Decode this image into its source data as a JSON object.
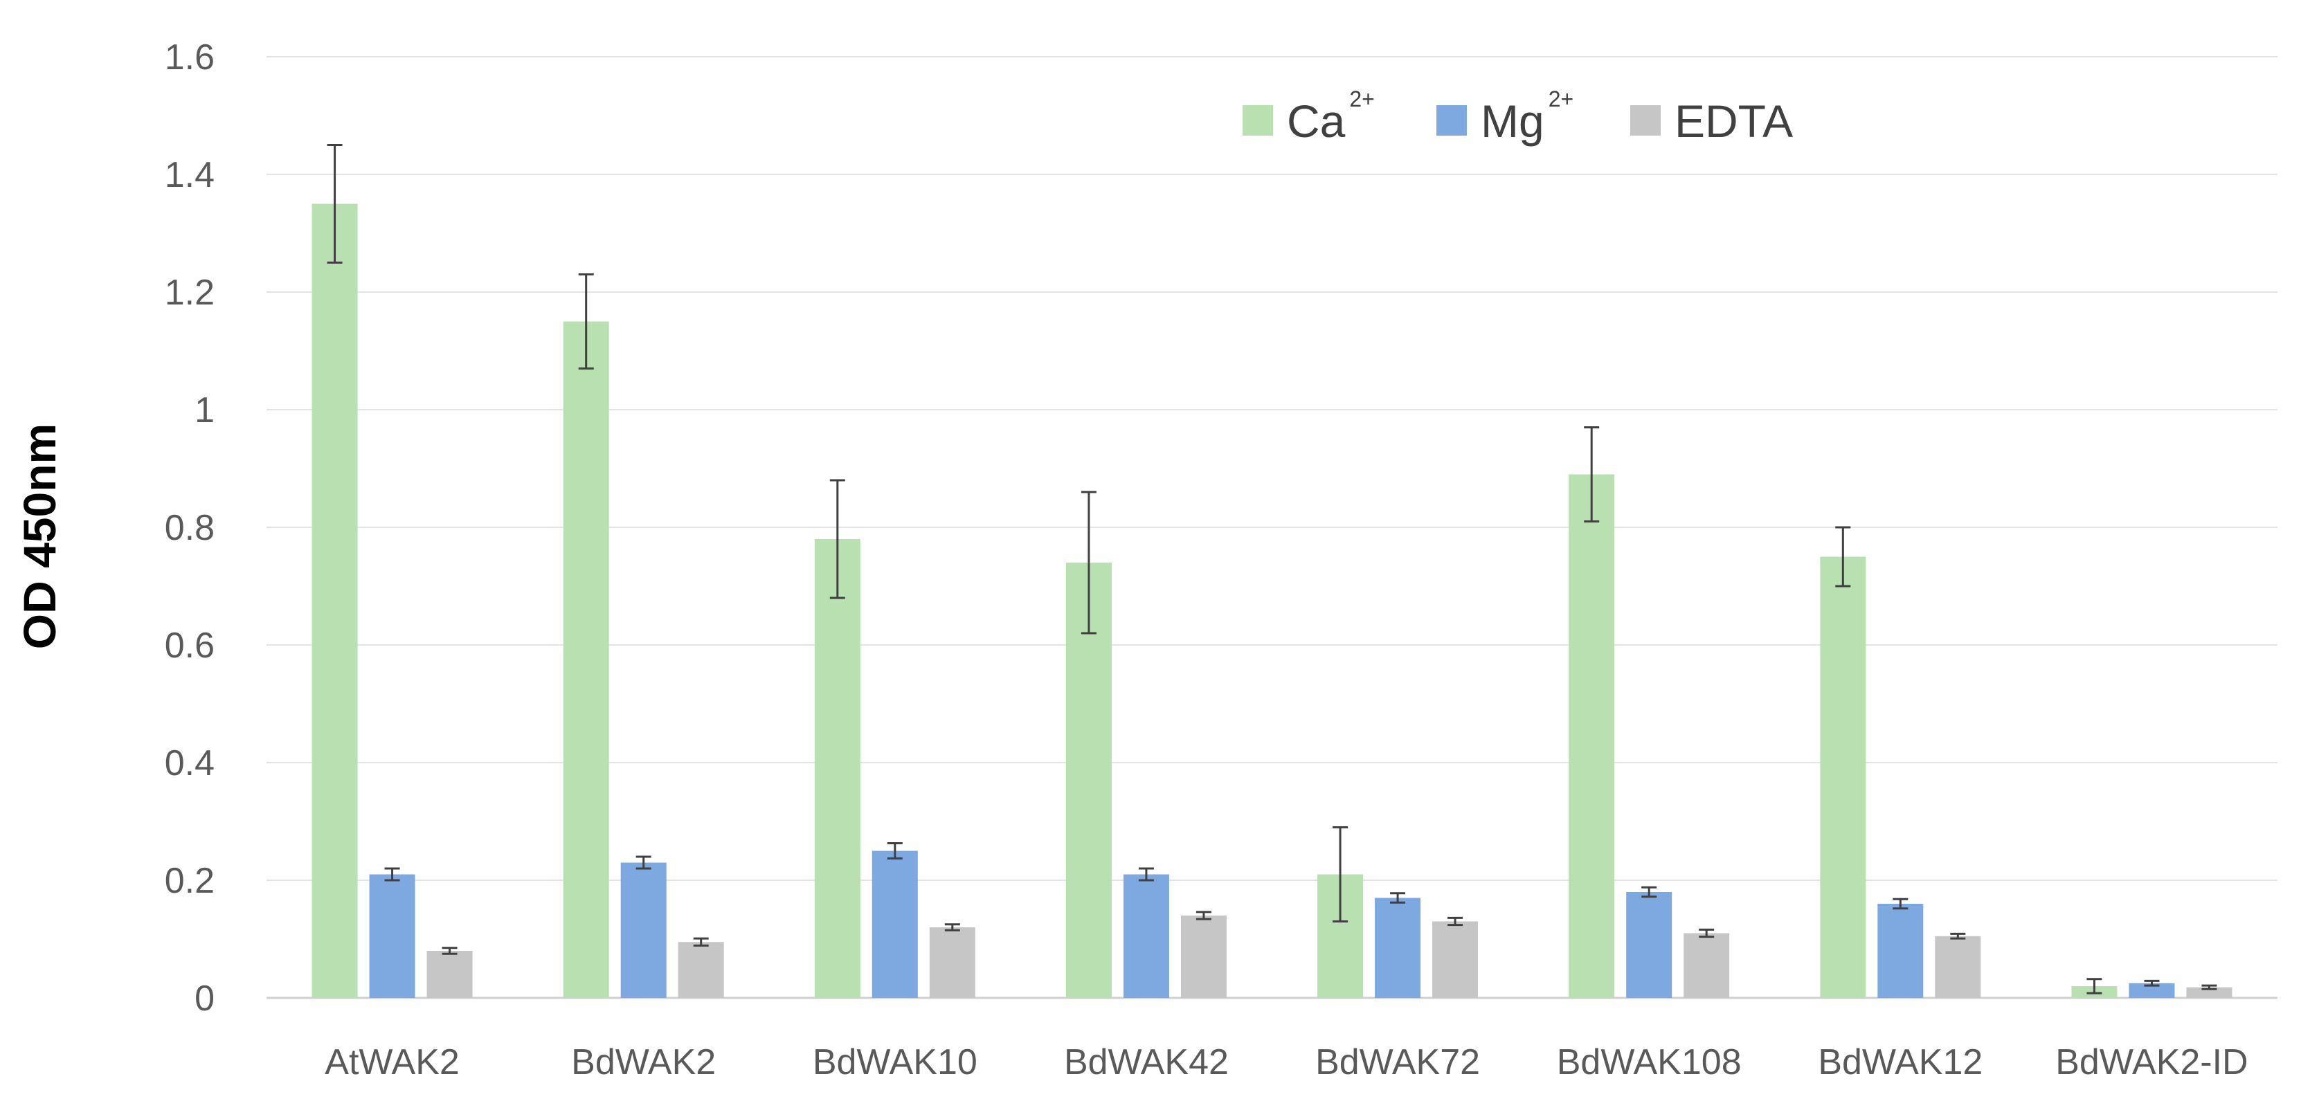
{
  "chart_data": {
    "type": "bar",
    "title": "",
    "xlabel": "",
    "ylabel": "OD 450nm",
    "ylim": [
      0,
      1.6
    ],
    "yticks": [
      0,
      0.2,
      0.4,
      0.6,
      0.8,
      1,
      1.2,
      1.4,
      1.6
    ],
    "ytick_labels": [
      "0",
      "0.2",
      "0.4",
      "0.6",
      "0.8",
      "1",
      "1.2",
      "1.4",
      "1.6"
    ],
    "grid": true,
    "legend_position": "top-right",
    "categories": [
      "AtWAK2",
      "BdWAK2",
      "BdWAK10",
      "BdWAK42",
      "BdWAK72",
      "BdWAK108",
      "BdWAK12",
      "BdWAK2-ID"
    ],
    "series": [
      {
        "name": "Ca2+",
        "legend_base": "Ca",
        "legend_sup": "2+",
        "color": "#b8e0b0",
        "values": [
          1.35,
          1.15,
          0.78,
          0.74,
          0.21,
          0.89,
          0.75,
          0.02
        ],
        "errors": [
          0.1,
          0.08,
          0.1,
          0.12,
          0.08,
          0.08,
          0.05,
          0.012
        ]
      },
      {
        "name": "Mg2+",
        "legend_base": "Mg",
        "legend_sup": "2+",
        "color": "#7ea8e0",
        "values": [
          0.21,
          0.23,
          0.25,
          0.21,
          0.17,
          0.18,
          0.16,
          0.025
        ],
        "errors": [
          0.01,
          0.01,
          0.013,
          0.01,
          0.008,
          0.008,
          0.008,
          0.004
        ]
      },
      {
        "name": "EDTA",
        "legend_base": "EDTA",
        "legend_sup": "",
        "color": "#c6c6c6",
        "values": [
          0.08,
          0.095,
          0.12,
          0.14,
          0.13,
          0.11,
          0.105,
          0.018
        ],
        "errors": [
          0.005,
          0.006,
          0.005,
          0.006,
          0.006,
          0.006,
          0.004,
          0.003
        ]
      }
    ]
  }
}
